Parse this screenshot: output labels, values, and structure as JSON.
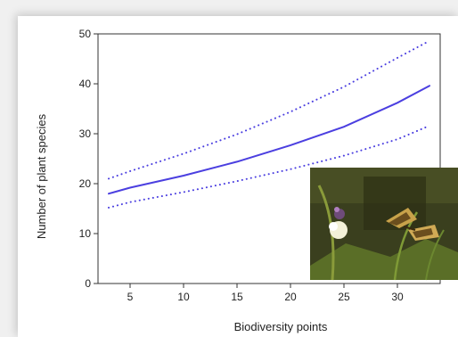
{
  "chart_data": {
    "type": "line",
    "xlabel": "Biodiversity points",
    "ylabel": "Number of  plant species",
    "xlim": [
      2,
      34
    ],
    "ylim": [
      0,
      50
    ],
    "xticks": [
      5,
      10,
      15,
      20,
      25,
      30
    ],
    "yticks": [
      0,
      10,
      20,
      30,
      40,
      50
    ],
    "grid": false,
    "color": "#4b3fe0",
    "series": [
      {
        "style": "solid",
        "x": [
          3,
          5,
          10,
          15,
          20,
          25,
          30,
          33
        ],
        "y": [
          18.0,
          19.2,
          21.6,
          24.4,
          27.7,
          31.4,
          36.2,
          39.6
        ]
      },
      {
        "style": "dotted",
        "x": [
          3,
          5,
          10,
          15,
          20,
          25,
          30,
          33
        ],
        "y": [
          21.0,
          22.5,
          26.0,
          29.9,
          34.4,
          39.4,
          45.2,
          48.6
        ]
      },
      {
        "style": "dotted",
        "x": [
          3,
          5,
          10,
          15,
          20,
          25,
          30,
          33
        ],
        "y": [
          15.2,
          16.3,
          18.3,
          20.5,
          22.9,
          25.6,
          28.9,
          31.6
        ]
      }
    ]
  },
  "photo": {
    "subject": "butterfly-on-flowers"
  }
}
